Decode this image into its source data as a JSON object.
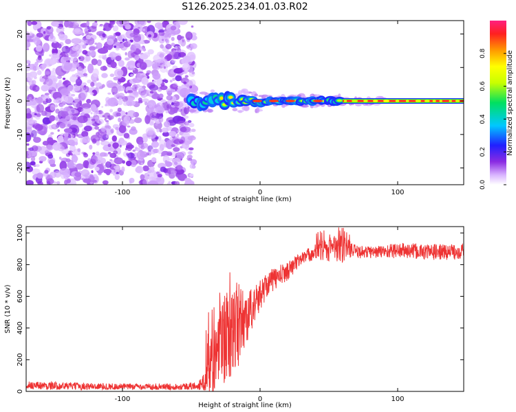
{
  "title": "S126.2025.234.01.03.R02",
  "chart_data": [
    {
      "type": "heatmap",
      "panel": "spectrogram",
      "xlabel": "Height of straight line (km)",
      "ylabel": "Frequency (Hz)",
      "xlim": [
        -170,
        148
      ],
      "ylim": [
        -25,
        24
      ],
      "xticks": [
        -100,
        0,
        100
      ],
      "yticks": [
        -20,
        -10,
        0,
        10,
        20
      ],
      "noise_region_x": [
        -170,
        -48
      ],
      "signal_band": {
        "frequency_hz": 0,
        "turbulent_region_x": [
          -50,
          60
        ],
        "stable_region_x": [
          60,
          148
        ]
      },
      "colorbar": {
        "label": "Normalized spectral amplitude",
        "range": [
          0,
          1
        ],
        "ticks": [
          0.0,
          0.2,
          0.4,
          0.6,
          0.8
        ],
        "tick_labels": [
          "0.0",
          "0.2",
          "0.4",
          "0.6",
          "0.8"
        ],
        "colors": [
          "#ffffff",
          "#d9b3ff",
          "#8a2be2",
          "#2020ff",
          "#00c8ff",
          "#00e060",
          "#c8ff00",
          "#ffff00",
          "#ff9900",
          "#ff2020",
          "#ff2080"
        ]
      }
    },
    {
      "type": "line",
      "panel": "snr",
      "xlabel": "Height of straight line (km)",
      "ylabel": "SNR (10 * v/v)",
      "xlim": [
        -170,
        148
      ],
      "ylim": [
        0,
        1040
      ],
      "xticks": [
        -100,
        0,
        100
      ],
      "yticks": [
        0,
        200,
        400,
        600,
        800,
        1000
      ],
      "color": "#ee3333",
      "profile_x": [
        -170,
        -150,
        -100,
        -60,
        -45,
        -40,
        -35,
        -25,
        -15,
        -5,
        5,
        20,
        30,
        40,
        50,
        60,
        70,
        85,
        100,
        120,
        140,
        148
      ],
      "profile_y": [
        40,
        35,
        30,
        30,
        35,
        60,
        180,
        350,
        420,
        530,
        680,
        760,
        840,
        880,
        900,
        900,
        880,
        880,
        890,
        880,
        880,
        890
      ],
      "noise_amplitude": [
        25,
        25,
        20,
        20,
        25,
        60,
        220,
        300,
        250,
        120,
        80,
        60,
        40,
        50,
        80,
        90,
        40,
        40,
        50,
        50,
        50,
        50
      ]
    }
  ]
}
